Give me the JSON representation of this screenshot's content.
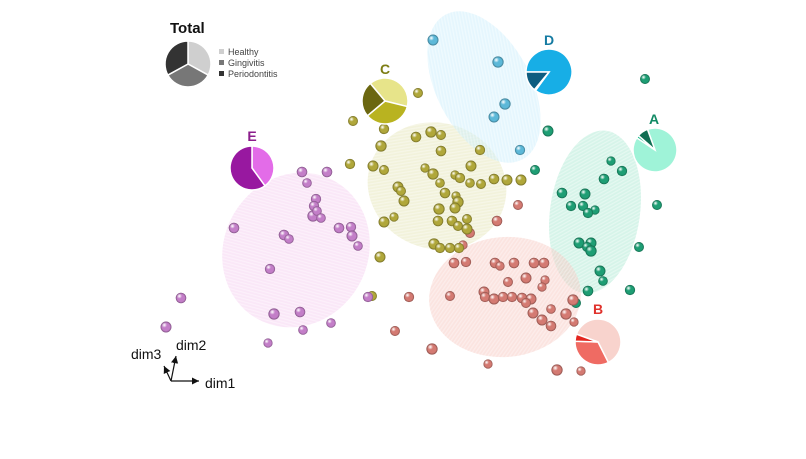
{
  "chart_data": {
    "type": "scatter",
    "title": "",
    "axes": {
      "x": "dim1",
      "y": "dim2",
      "z": "dim3"
    },
    "legend": {
      "title": "Total",
      "entries": [
        {
          "label": "Healthy",
          "color": "#cfcfcf"
        },
        {
          "label": "Gingivitis",
          "color": "#777777"
        },
        {
          "label": "Periodontitis",
          "color": "#333333"
        }
      ],
      "total_pie": [
        0.33,
        0.34,
        0.33
      ]
    },
    "clusters": [
      {
        "name": "A",
        "label_color": "#118a64",
        "point_color": "#1e9e74",
        "ellipse_color": "#a8e6cf",
        "pie": [
          0.9,
          0.02,
          0.08
        ],
        "pie_colors": [
          "#9ff3d8",
          "#14b98a",
          "#0f6e52"
        ],
        "points": [
          [
            645,
            79
          ],
          [
            548,
            131
          ],
          [
            535,
            170
          ],
          [
            611,
            161
          ],
          [
            622,
            171
          ],
          [
            604,
            179
          ],
          [
            562,
            193
          ],
          [
            585,
            194
          ],
          [
            657,
            205
          ],
          [
            571,
            206
          ],
          [
            583,
            206
          ],
          [
            595,
            210
          ],
          [
            588,
            213
          ],
          [
            579,
            243
          ],
          [
            591,
            243
          ],
          [
            587,
            247
          ],
          [
            639,
            247
          ],
          [
            591,
            251
          ],
          [
            600,
            271
          ],
          [
            603,
            281
          ],
          [
            588,
            291
          ],
          [
            630,
            290
          ],
          [
            576,
            303
          ]
        ]
      },
      {
        "name": "B",
        "label_color": "#e0322c",
        "point_color": "#d47a72",
        "ellipse_color": "#f6c4bd",
        "pie": [
          0.62,
          0.33,
          0.05
        ],
        "pie_colors": [
          "#f8d3cd",
          "#ef6b63",
          "#e3251f"
        ],
        "points": [
          [
            518,
            205
          ],
          [
            497,
            221
          ],
          [
            470,
            233
          ],
          [
            463,
            245
          ],
          [
            454,
            263
          ],
          [
            466,
            262
          ],
          [
            495,
            263
          ],
          [
            514,
            263
          ],
          [
            534,
            263
          ],
          [
            544,
            263
          ],
          [
            500,
            266
          ],
          [
            526,
            278
          ],
          [
            508,
            282
          ],
          [
            545,
            280
          ],
          [
            542,
            287
          ],
          [
            484,
            292
          ],
          [
            450,
            296
          ],
          [
            409,
            297
          ],
          [
            485,
            297
          ],
          [
            494,
            299
          ],
          [
            503,
            297
          ],
          [
            512,
            297
          ],
          [
            522,
            298
          ],
          [
            531,
            299
          ],
          [
            526,
            303
          ],
          [
            573,
            300
          ],
          [
            551,
            309
          ],
          [
            533,
            313
          ],
          [
            542,
            320
          ],
          [
            551,
            326
          ],
          [
            566,
            314
          ],
          [
            574,
            322
          ],
          [
            395,
            331
          ],
          [
            432,
            349
          ],
          [
            488,
            364
          ],
          [
            557,
            370
          ],
          [
            581,
            371
          ]
        ]
      },
      {
        "name": "C",
        "label_color": "#7d7d14",
        "point_color": "#b0a73a",
        "ellipse_color": "#e3e3b2",
        "pie": [
          0.4,
          0.35,
          0.25
        ],
        "pie_colors": [
          "#e7e48a",
          "#b9b320",
          "#6b6710"
        ],
        "points": [
          [
            418,
            93
          ],
          [
            353,
            121
          ],
          [
            384,
            129
          ],
          [
            431,
            132
          ],
          [
            441,
            135
          ],
          [
            416,
            137
          ],
          [
            381,
            146
          ],
          [
            441,
            151
          ],
          [
            480,
            150
          ],
          [
            350,
            164
          ],
          [
            373,
            166
          ],
          [
            471,
            166
          ],
          [
            425,
            168
          ],
          [
            384,
            170
          ],
          [
            433,
            174
          ],
          [
            455,
            175
          ],
          [
            460,
            178
          ],
          [
            494,
            179
          ],
          [
            507,
            180
          ],
          [
            521,
            180
          ],
          [
            440,
            183
          ],
          [
            470,
            183
          ],
          [
            481,
            184
          ],
          [
            398,
            187
          ],
          [
            401,
            191
          ],
          [
            445,
            193
          ],
          [
            456,
            196
          ],
          [
            404,
            201
          ],
          [
            458,
            202
          ],
          [
            439,
            209
          ],
          [
            455,
            208
          ],
          [
            394,
            217
          ],
          [
            384,
            222
          ],
          [
            467,
            219
          ],
          [
            438,
            221
          ],
          [
            452,
            221
          ],
          [
            458,
            226
          ],
          [
            467,
            229
          ],
          [
            434,
            244
          ],
          [
            440,
            248
          ],
          [
            450,
            248
          ],
          [
            459,
            248
          ],
          [
            380,
            257
          ],
          [
            372,
            296
          ]
        ]
      },
      {
        "name": "D",
        "label_color": "#157ba2",
        "point_color": "#5cb8d8",
        "ellipse_color": "#c8ecfa",
        "pie": [
          0.85,
          0.01,
          0.14
        ],
        "pie_colors": [
          "#17aee6",
          "#43c3ef",
          "#0e5d80"
        ],
        "points": [
          [
            433,
            40
          ],
          [
            498,
            62
          ],
          [
            505,
            104
          ],
          [
            494,
            117
          ],
          [
            520,
            150
          ]
        ]
      },
      {
        "name": "E",
        "label_color": "#8b1d8b",
        "point_color": "#c37ec8",
        "ellipse_color": "#f3cbef",
        "pie": [
          0.4,
          0.6,
          0.0
        ],
        "pie_colors": [
          "#e36ce8",
          "#9818a0",
          "#5a0f5e"
        ],
        "points": [
          [
            302,
            172
          ],
          [
            327,
            172
          ],
          [
            307,
            183
          ],
          [
            316,
            199
          ],
          [
            314,
            206
          ],
          [
            313,
            216
          ],
          [
            317,
            211
          ],
          [
            321,
            218
          ],
          [
            339,
            228
          ],
          [
            351,
            227
          ],
          [
            234,
            228
          ],
          [
            284,
            235
          ],
          [
            289,
            239
          ],
          [
            352,
            236
          ],
          [
            358,
            246
          ],
          [
            270,
            269
          ],
          [
            181,
            298
          ],
          [
            300,
            312
          ],
          [
            274,
            314
          ],
          [
            166,
            327
          ],
          [
            331,
            323
          ],
          [
            303,
            330
          ],
          [
            268,
            343
          ],
          [
            368,
            297
          ]
        ]
      }
    ],
    "ellipses": [
      "A",
      "B",
      "C",
      "D",
      "E"
    ]
  }
}
